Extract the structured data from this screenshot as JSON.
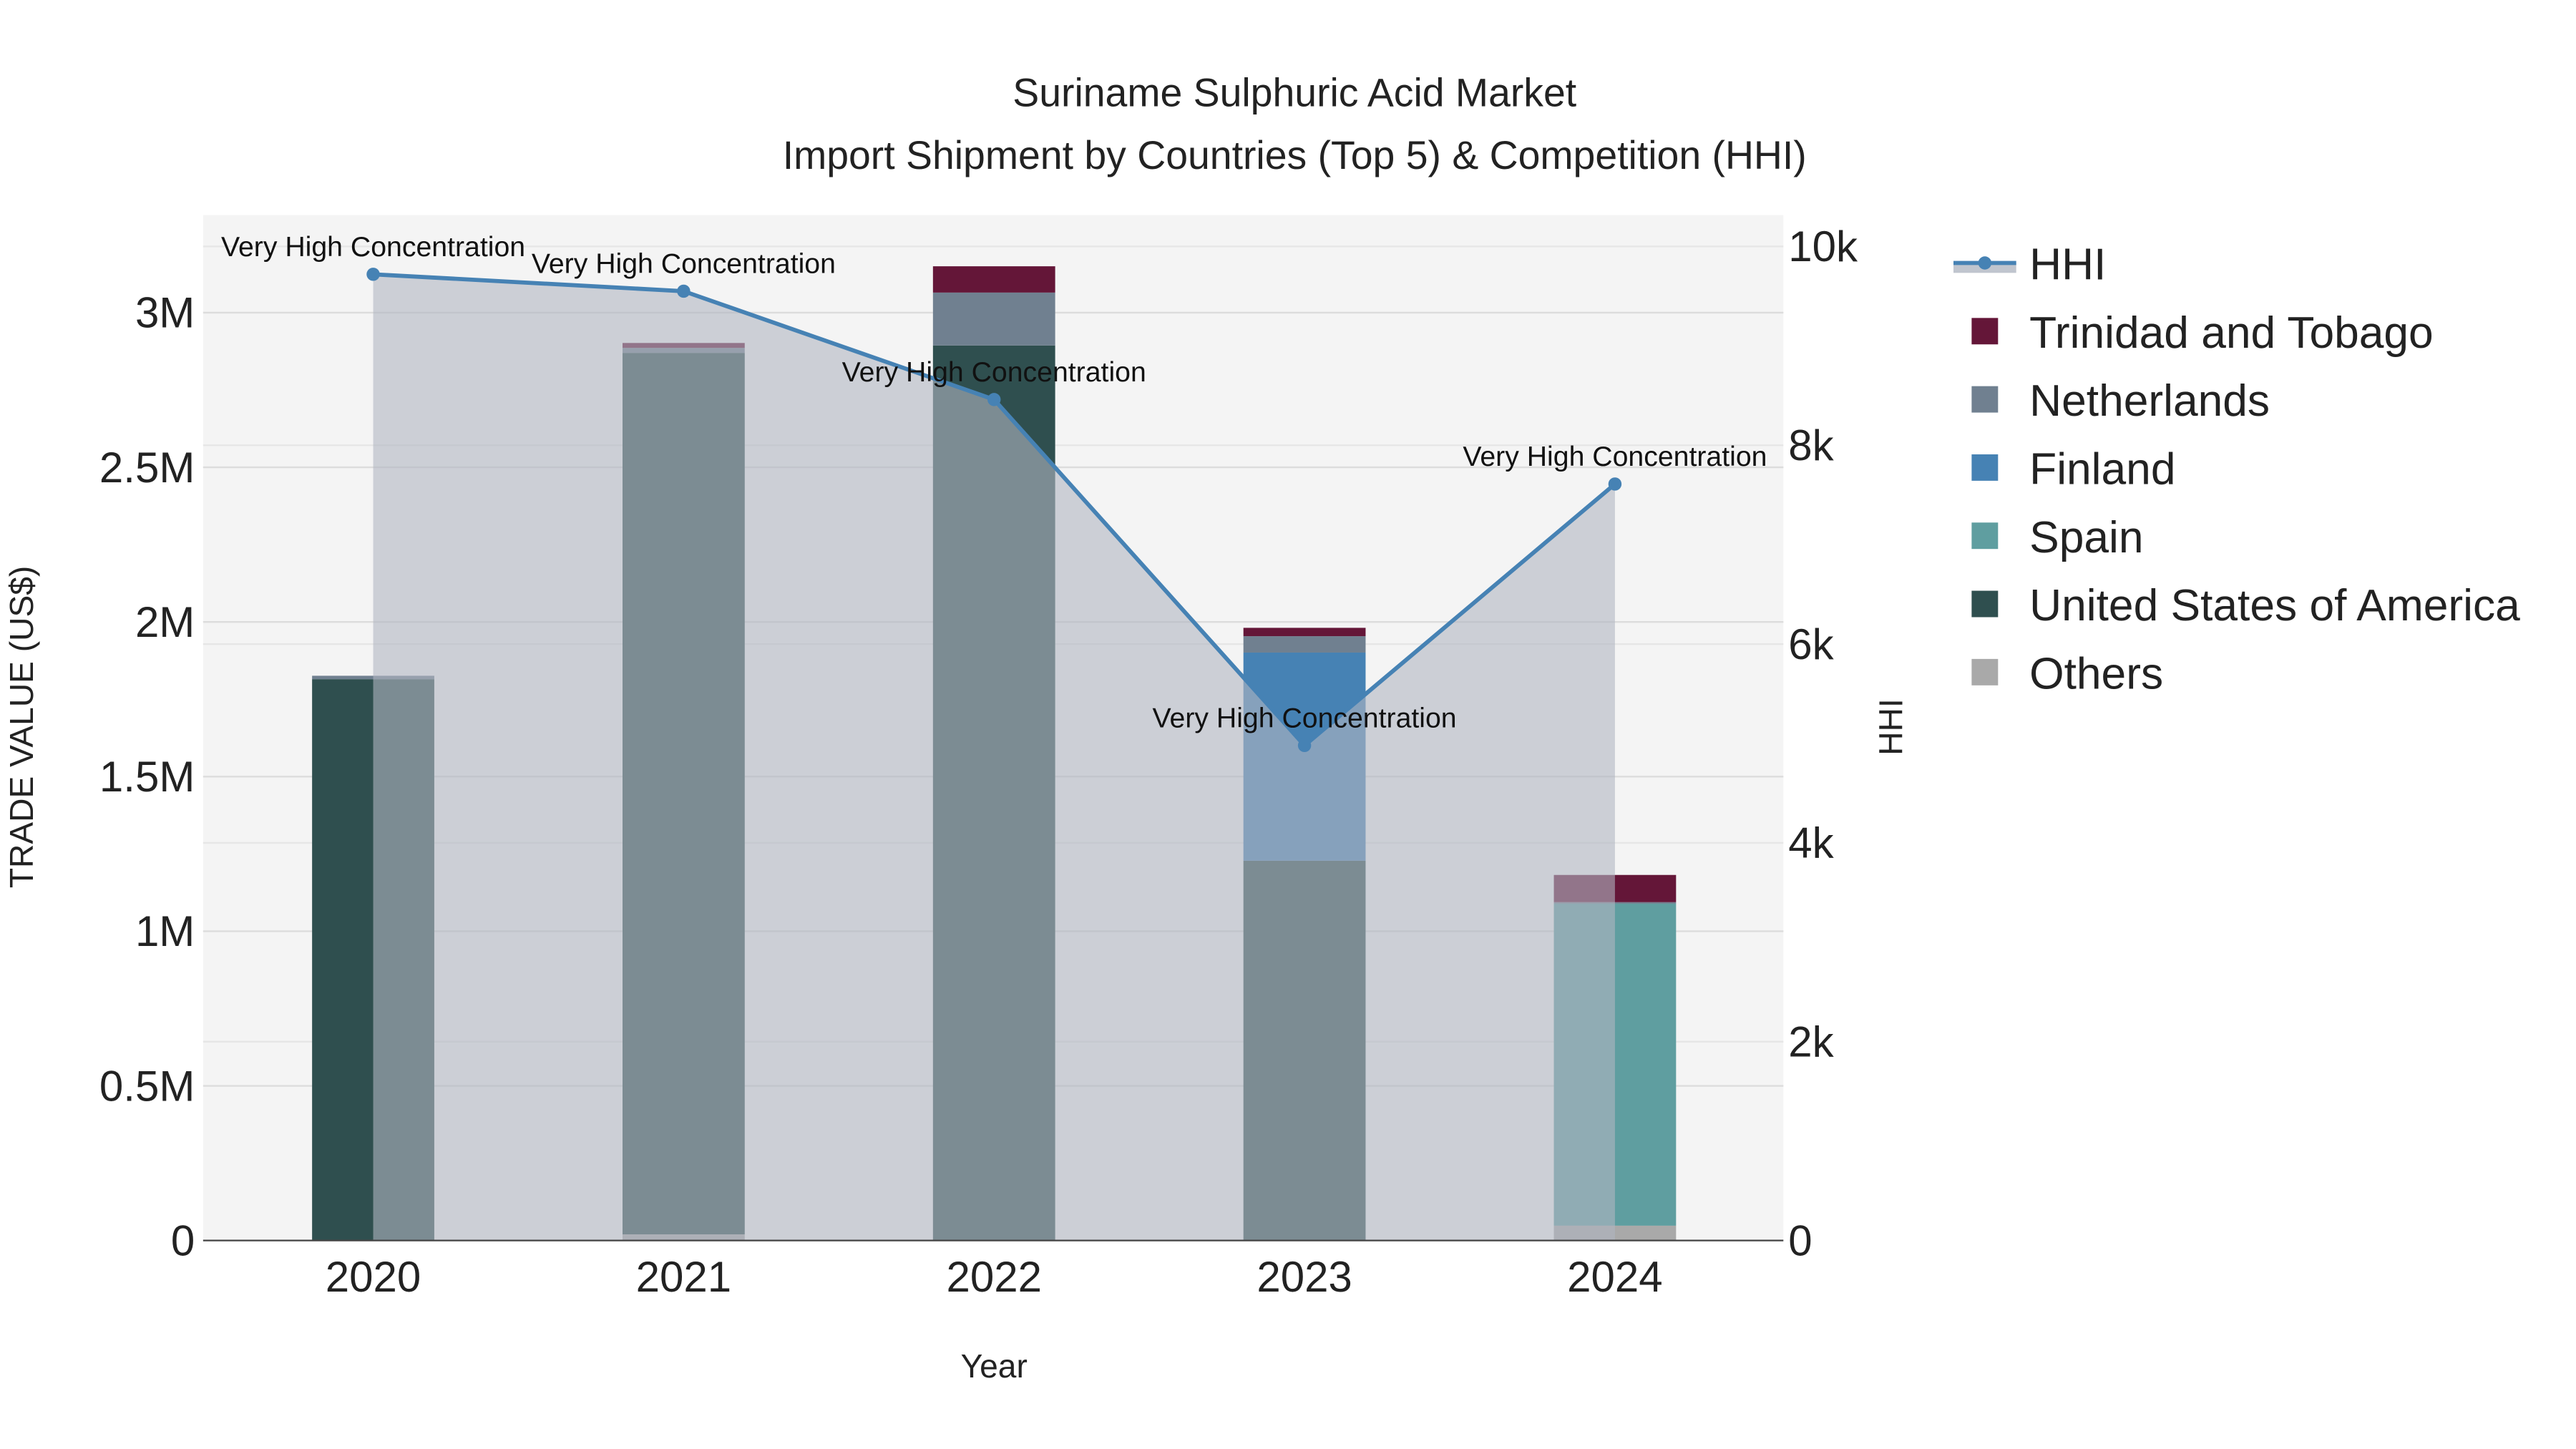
{
  "chart_data": {
    "type": "bar",
    "title": "Suriname Sulphuric Acid Market",
    "subtitle": "Import Shipment by Countries (Top 5) & Competition (HHI)",
    "xlabel": "Year",
    "ylabel": "TRADE VALUE (US$)",
    "y2label": "HHI",
    "categories": [
      "2020",
      "2021",
      "2022",
      "2023",
      "2024"
    ],
    "ylim": [
      0,
      3300000
    ],
    "y_ticks": [
      0,
      500000,
      1000000,
      1500000,
      2000000,
      2500000,
      3000000
    ],
    "y_tick_labels": [
      "0",
      "0.5M",
      "1M",
      "1.5M",
      "2M",
      "2.5M",
      "3M"
    ],
    "y2lim": [
      0,
      10300
    ],
    "y2_ticks": [
      0,
      2000,
      4000,
      6000,
      8000,
      10000
    ],
    "y2_tick_labels": [
      "0",
      "2k",
      "4k",
      "6k",
      "8k",
      "10k"
    ],
    "stacked": true,
    "legend_position": "right",
    "series": [
      {
        "name": "Others",
        "color": "#A9A9A9",
        "values": [
          0,
          20000,
          0,
          0,
          48000
        ]
      },
      {
        "name": "United States of America",
        "color": "#2F4F4F",
        "values": [
          1815000,
          2850000,
          2894000,
          1228000,
          0
        ]
      },
      {
        "name": "Spain",
        "color": "#5F9EA0",
        "values": [
          0,
          0,
          0,
          0,
          1041000
        ]
      },
      {
        "name": "Finland",
        "color": "#4682B4",
        "values": [
          0,
          0,
          0,
          673000,
          0
        ]
      },
      {
        "name": "Netherlands",
        "color": "#708090",
        "values": [
          11000,
          16000,
          171000,
          53000,
          5000
        ]
      },
      {
        "name": "Trinidad and Tobago",
        "color": "#641638",
        "values": [
          0,
          16000,
          85000,
          27000,
          88000
        ]
      }
    ],
    "line": {
      "name": "HHI",
      "color": "#4682B4",
      "values": [
        9720,
        9550,
        8460,
        4980,
        7610
      ],
      "annotations": [
        "Very High Concentration",
        "Very High Concentration",
        "Very High Concentration",
        "Very High Concentration",
        "Very High Concentration"
      ]
    },
    "legend_order": [
      "HHI",
      "Trinidad and Tobago",
      "Netherlands",
      "Finland",
      "Spain",
      "United States of America",
      "Others"
    ]
  }
}
